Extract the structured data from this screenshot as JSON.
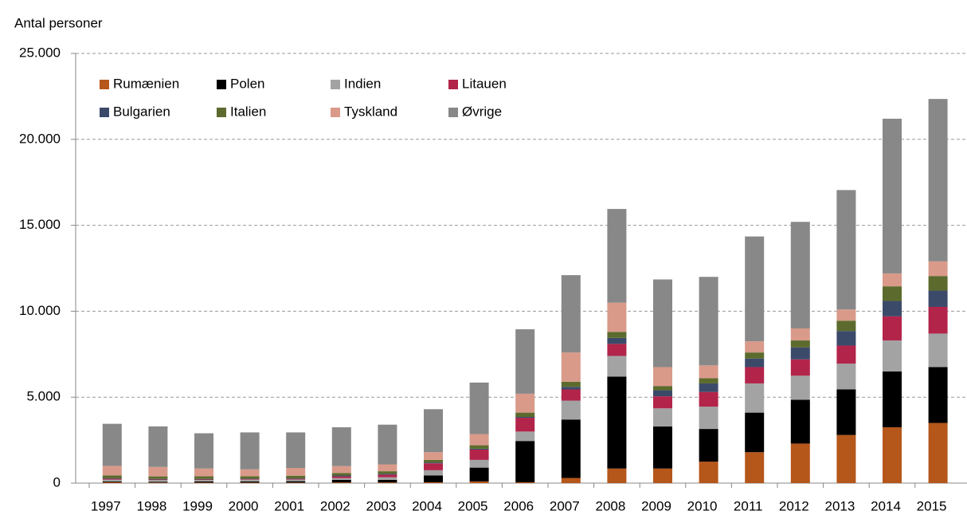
{
  "chart_data": {
    "type": "stacked_bar",
    "y_label": "Antal personer",
    "categories": [
      "1997",
      "1998",
      "1999",
      "2000",
      "2001",
      "2002",
      "2003",
      "2004",
      "2005",
      "2006",
      "2007",
      "2008",
      "2009",
      "2010",
      "2011",
      "2012",
      "2013",
      "2014",
      "2015"
    ],
    "series": [
      {
        "name": "Rumænien",
        "color": "#b5561b",
        "values": [
          50,
          30,
          30,
          30,
          30,
          40,
          40,
          50,
          100,
          50,
          300,
          850,
          850,
          1250,
          1800,
          2300,
          2800,
          3250,
          3500
        ]
      },
      {
        "name": "Polen",
        "color": "#000000",
        "values": [
          50,
          50,
          70,
          70,
          80,
          150,
          150,
          400,
          800,
          2400,
          3400,
          5350,
          2450,
          1900,
          2300,
          2550,
          2650,
          3250,
          3250
        ]
      },
      {
        "name": "Indien",
        "color": "#a3a3a3",
        "values": [
          100,
          100,
          80,
          100,
          100,
          100,
          150,
          300,
          450,
          550,
          1100,
          1200,
          1050,
          1300,
          1700,
          1400,
          1500,
          1800,
          1950
        ]
      },
      {
        "name": "Litauen",
        "color": "#b3244a",
        "values": [
          50,
          30,
          30,
          30,
          40,
          100,
          150,
          400,
          600,
          800,
          650,
          700,
          700,
          850,
          950,
          950,
          1050,
          1400,
          1550
        ]
      },
      {
        "name": "Bulgarien",
        "color": "#3c4a6a",
        "values": [
          30,
          30,
          30,
          30,
          30,
          50,
          50,
          50,
          50,
          50,
          150,
          350,
          350,
          500,
          500,
          700,
          850,
          900,
          950
        ]
      },
      {
        "name": "Italien",
        "color": "#5c6b2d",
        "values": [
          170,
          150,
          160,
          140,
          150,
          150,
          150,
          150,
          200,
          250,
          300,
          350,
          250,
          300,
          350,
          400,
          600,
          850,
          850
        ]
      },
      {
        "name": "Tyskland",
        "color": "#d99a8a",
        "values": [
          550,
          550,
          450,
          400,
          450,
          400,
          400,
          450,
          650,
          1100,
          1700,
          1700,
          1100,
          750,
          650,
          700,
          650,
          750,
          850
        ]
      },
      {
        "name": "Øvrige",
        "color": "#888888",
        "values": [
          2450,
          2360,
          2050,
          2150,
          2070,
          2260,
          2310,
          2500,
          3000,
          3750,
          4500,
          5450,
          5100,
          5150,
          6100,
          6200,
          6950,
          9000,
          9450
        ]
      }
    ],
    "ylim": [
      0,
      25000
    ],
    "yticks": [
      0,
      {
        "value": 5000,
        "label": "5.000"
      },
      {
        "value": 10000,
        "label": "10.000"
      },
      {
        "value": 15000,
        "label": "15.000"
      },
      {
        "value": 20000,
        "label": "20.000"
      },
      {
        "value": 25000,
        "label": "25.000"
      }
    ],
    "grid": true
  }
}
